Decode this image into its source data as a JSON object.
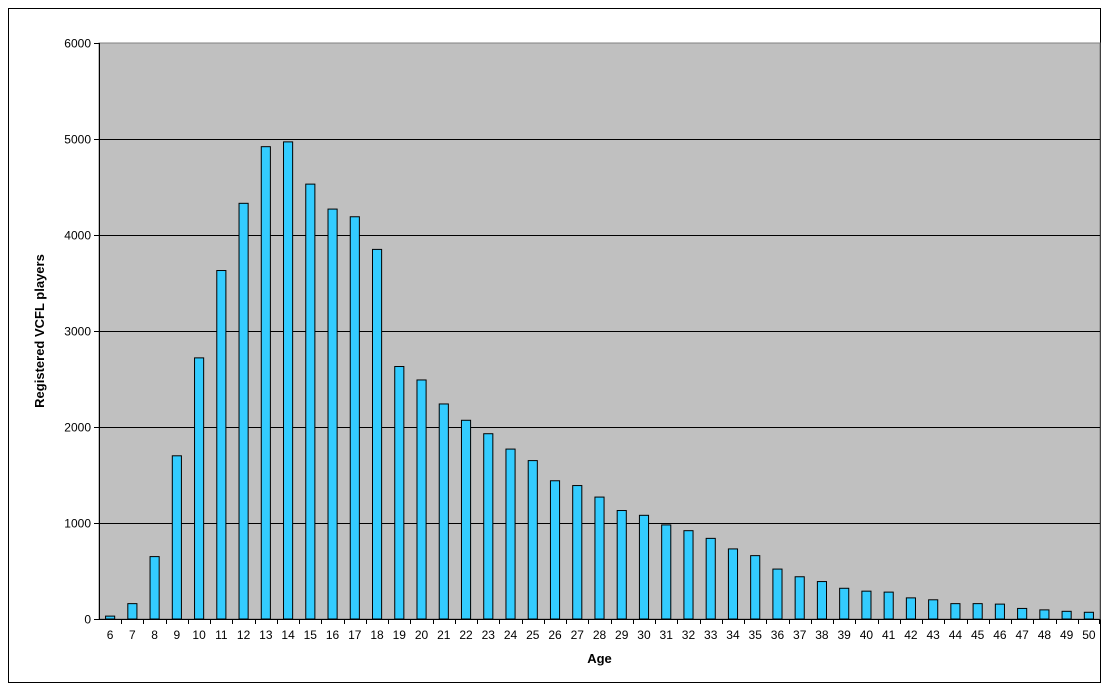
{
  "chart_data": {
    "type": "bar",
    "title": "",
    "xlabel": "Age",
    "ylabel": "Registered VCFL players",
    "ylim": [
      0,
      6000
    ],
    "yticks": [
      0,
      1000,
      2000,
      3000,
      4000,
      5000,
      6000
    ],
    "grid": true,
    "legend": "none",
    "categories": [
      "6",
      "7",
      "8",
      "9",
      "10",
      "11",
      "12",
      "13",
      "14",
      "15",
      "16",
      "17",
      "18",
      "19",
      "20",
      "21",
      "22",
      "23",
      "24",
      "25",
      "26",
      "27",
      "28",
      "29",
      "30",
      "31",
      "32",
      "33",
      "34",
      "35",
      "36",
      "37",
      "38",
      "39",
      "40",
      "41",
      "42",
      "43",
      "44",
      "45",
      "46",
      "47",
      "48",
      "49",
      "50"
    ],
    "series": [
      {
        "values": [
          30,
          160,
          650,
          1700,
          2720,
          3630,
          4330,
          4920,
          4970,
          4530,
          4270,
          4190,
          3850,
          2630,
          2490,
          2240,
          2070,
          1930,
          1770,
          1650,
          1440,
          1390,
          1270,
          1130,
          1080,
          980,
          920,
          840,
          730,
          660,
          520,
          440,
          390,
          320,
          290,
          280,
          220,
          200,
          160,
          160,
          155,
          110,
          95,
          80,
          70
        ]
      }
    ],
    "colors": {
      "bar_fill": "#33CCFF",
      "bar_stroke": "#000000",
      "plot_background": "#C0C0C0",
      "gridline": "#000000"
    }
  }
}
